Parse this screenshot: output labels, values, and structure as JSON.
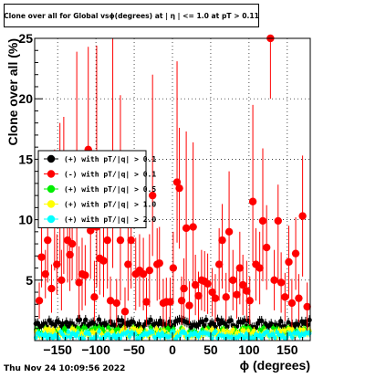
{
  "title": "Clone  over all for Global vsϕ(degrees) at | η | <= 1.0 at pT > 0.11",
  "timestamp": "Thu Nov 24 10:09:56 2022",
  "chart_data": {
    "type": "scatter",
    "title": "Clone  over all for Global vsϕ(degrees) at | η | <= 1.0 at pT > 0.11",
    "xlabel": "ϕ (degrees)",
    "ylabel": "Clone  over all (%)",
    "xlim": [
      -180,
      180
    ],
    "ylim": [
      0,
      25
    ],
    "x_ticks": [
      -150,
      -100,
      -50,
      0,
      50,
      100,
      150
    ],
    "y_ticks": [
      5,
      10,
      15,
      20,
      25
    ],
    "grid": true,
    "legend_position": "left-middle",
    "series": [
      {
        "name": "(+) with pT/|q| > 0.1",
        "color": "#000000",
        "marker": "circle-small",
        "baseline": 1.4,
        "spread": 0.35,
        "error_bar": 0.4
      },
      {
        "name": "(-) with pT/|q| > 0.1",
        "color": "#ff0000",
        "marker": "circle-large",
        "x": [
          -174,
          -171,
          -166,
          -163,
          -158,
          -154,
          -151,
          -147,
          -145,
          -142,
          -137,
          -134,
          -131,
          -125,
          -122,
          -118,
          -114,
          -110,
          -107,
          -102,
          -99,
          -95,
          -90,
          -85,
          -81,
          -78,
          -73,
          -68,
          -62,
          -58,
          -54,
          -48,
          -43,
          -38,
          -34,
          -30,
          -26,
          -20,
          -17,
          -12,
          -8,
          -3,
          1,
          6,
          9,
          12,
          15,
          18,
          22,
          27,
          30,
          34,
          38,
          42,
          46,
          52,
          56,
          61,
          65,
          70,
          74,
          79,
          84,
          88,
          92,
          97,
          101,
          105,
          109,
          114,
          118,
          123,
          128,
          133,
          138,
          142,
          147,
          152,
          156,
          161,
          165,
          170,
          176
        ],
        "y": [
          3.3,
          6.9,
          5.5,
          8.3,
          4.3,
          9.8,
          6.3,
          11.0,
          5.0,
          10.5,
          8.3,
          7.1,
          8.0,
          9.9,
          4.8,
          5.5,
          5.4,
          15.8,
          9.1,
          3.6,
          9.4,
          6.8,
          6.6,
          8.3,
          3.3,
          11.0,
          3.1,
          8.3,
          2.4,
          6.3,
          8.3,
          5.5,
          5.8,
          5.5,
          3.2,
          5.8,
          12.0,
          6.3,
          6.4,
          3.1,
          3.2,
          3.2,
          6.0,
          13.1,
          12.6,
          3.3,
          4.3,
          9.3,
          2.9,
          9.4,
          4.6,
          3.7,
          5.0,
          4.9,
          4.7,
          4.0,
          3.5,
          6.3,
          8.3,
          3.6,
          9.0,
          5.0,
          3.8,
          6.0,
          4.6,
          4.1,
          3.3,
          11.5,
          6.3,
          6.0,
          9.9,
          7.7,
          25.0,
          5.0,
          9.9,
          4.8,
          3.6,
          6.5,
          3.1,
          7.2,
          3.5,
          10.3,
          2.8
        ],
        "y_err_up": [
          1.5,
          3.0,
          2.0,
          4.5,
          2.0,
          6.0,
          2.5,
          7.0,
          2.5,
          8.0,
          3.5,
          3.0,
          3.0,
          14.0,
          3.0,
          3.0,
          2.5,
          8.5,
          6.0,
          3.0,
          15.0,
          3.0,
          3.0,
          5.0,
          2.0,
          14.0,
          2.0,
          12.0,
          2.0,
          3.0,
          4.0,
          3.0,
          3.0,
          3.0,
          2.0,
          3.0,
          10.0,
          3.0,
          3.0,
          2.0,
          2.0,
          2.0,
          3.0,
          10.0,
          5.0,
          2.0,
          2.5,
          8.0,
          2.0,
          7.0,
          2.5,
          2.0,
          2.5,
          2.5,
          2.5,
          2.0,
          2.0,
          3.0,
          3.0,
          2.0,
          5.0,
          2.5,
          2.0,
          3.0,
          2.5,
          2.5,
          2.0,
          8.0,
          3.0,
          3.0,
          6.0,
          3.5,
          0.0,
          2.5,
          3.0,
          2.5,
          2.0,
          3.0,
          2.0,
          3.0,
          2.0,
          5.0,
          2.0
        ],
        "y_err_down": [
          1.5,
          2.5,
          2.0,
          3.5,
          2.0,
          4.0,
          2.5,
          4.5,
          2.5,
          5.0,
          3.5,
          3.0,
          3.0,
          5.0,
          3.0,
          3.0,
          2.5,
          6.0,
          4.0,
          2.0,
          5.0,
          3.0,
          3.0,
          4.0,
          2.0,
          5.0,
          2.0,
          5.0,
          1.5,
          3.0,
          4.0,
          3.0,
          3.0,
          3.0,
          2.0,
          3.0,
          5.0,
          3.0,
          3.0,
          2.0,
          2.0,
          2.0,
          3.0,
          5.0,
          5.0,
          2.0,
          2.5,
          5.0,
          1.5,
          5.0,
          2.5,
          2.0,
          2.5,
          2.5,
          2.5,
          2.0,
          2.0,
          3.0,
          4.0,
          2.0,
          5.0,
          2.5,
          2.0,
          3.0,
          2.5,
          2.5,
          2.0,
          5.0,
          3.0,
          3.0,
          5.0,
          3.5,
          5.0,
          2.5,
          5.0,
          2.5,
          2.0,
          3.0,
          2.0,
          3.0,
          2.0,
          5.0,
          2.0
        ]
      },
      {
        "name": "(+) with pT/|q| > 0.5",
        "color": "#00ee00",
        "marker": "circle-small",
        "baseline": 0.75,
        "spread": 0.35,
        "error_bar": 0.3
      },
      {
        "name": "(+) with pT/|q| > 1.0",
        "color": "#ffff00",
        "marker": "circle-small",
        "baseline": 0.65,
        "spread": 0.35,
        "error_bar": 0.3
      },
      {
        "name": "(+) with pT/|q| > 2.0",
        "color": "#00ffff",
        "marker": "circle-small",
        "baseline": 0.45,
        "spread": 0.3,
        "error_bar": 0.3
      }
    ]
  }
}
